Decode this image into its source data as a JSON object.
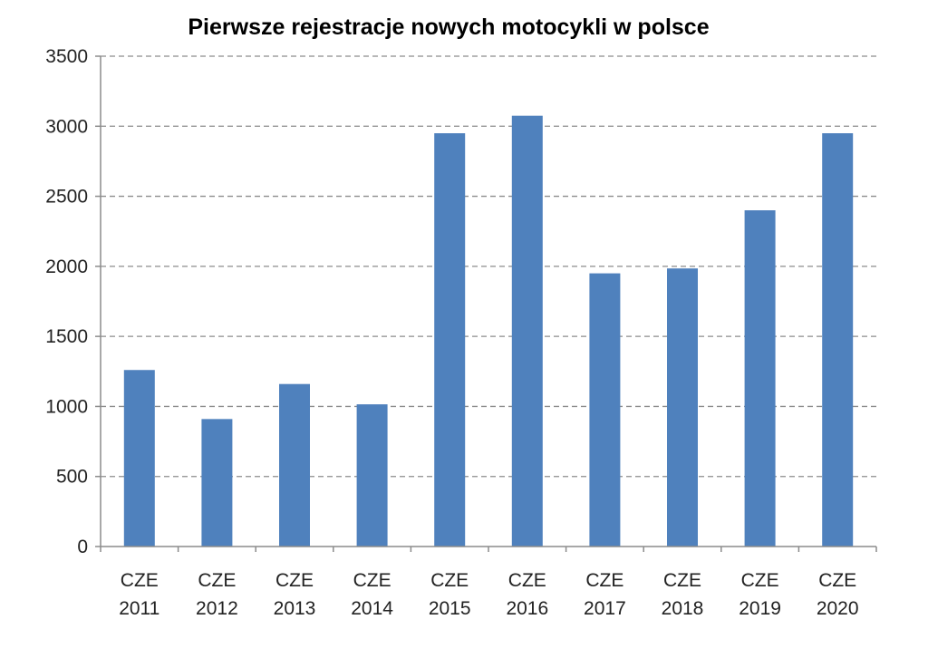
{
  "chart_data": {
    "type": "bar",
    "title": "Pierwsze rejestracje nowych motocykli w polsce",
    "xlabel": "",
    "ylabel": "",
    "categories": [
      [
        "CZE",
        "2011"
      ],
      [
        "CZE",
        "2012"
      ],
      [
        "CZE",
        "2013"
      ],
      [
        "CZE",
        "2014"
      ],
      [
        "CZE",
        "2015"
      ],
      [
        "CZE",
        "2016"
      ],
      [
        "CZE",
        "2017"
      ],
      [
        "CZE",
        "2018"
      ],
      [
        "CZE",
        "2019"
      ],
      [
        "CZE",
        "2020"
      ]
    ],
    "values": [
      1260,
      910,
      1160,
      1015,
      2950,
      3075,
      1950,
      1985,
      2400,
      2950
    ],
    "ylim": [
      0,
      3500
    ],
    "yticks": [
      0,
      500,
      1000,
      1500,
      2000,
      2500,
      3000,
      3500
    ],
    "grid": true,
    "bar_color": "#4f81bd"
  }
}
